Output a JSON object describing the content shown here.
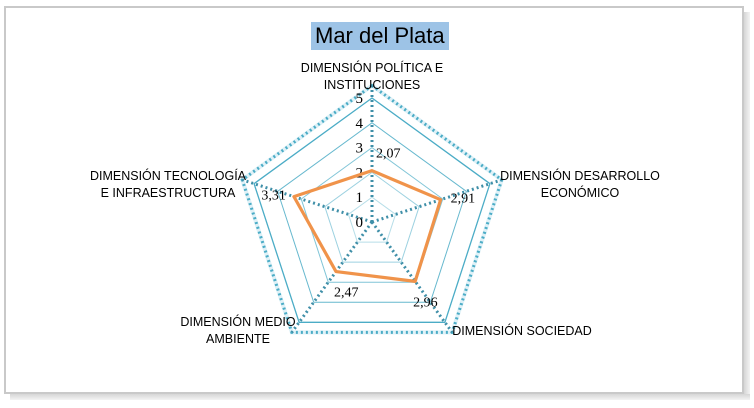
{
  "chart_data": {
    "type": "radar",
    "title": "Mar del Plata",
    "categories": [
      [
        "DIMENSIÓN POLÍTICA E",
        "INSTITUCIONES"
      ],
      [
        "DIMENSIÓN DESARROLLO",
        "ECONÓMICO"
      ],
      [
        "DIMENSIÓN SOCIEDAD"
      ],
      [
        "DIMENSIÓN MEDIO",
        "AMBIENTE"
      ],
      [
        "DIMENSIÓN TECNOLOGÍA",
        "E INFRAESTRUCTURA"
      ]
    ],
    "series": [
      {
        "values": [
          2.07,
          2.91,
          2.96,
          2.47,
          3.31
        ],
        "color": "#f0934a"
      }
    ],
    "data_labels": [
      "2,07",
      "2,91",
      "2,96",
      "2,47",
      "3,31"
    ],
    "r_range": [
      0,
      5
    ],
    "r_ticks": [
      "0",
      "1",
      "2",
      "3",
      "4",
      "5"
    ],
    "grid_color": "#4bacc6",
    "gridlines": true,
    "legend": "none"
  }
}
